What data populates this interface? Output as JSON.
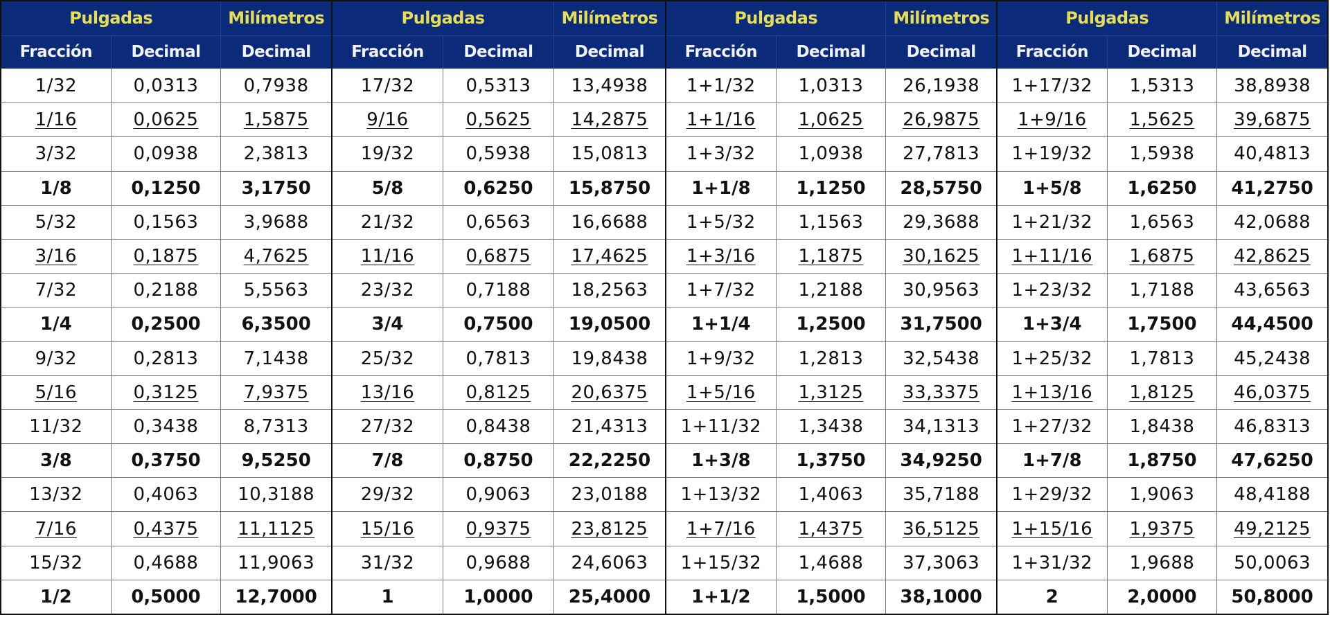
{
  "headers": {
    "group_title_inches": "Pulgadas",
    "group_title_mm": "Milímetros",
    "col_fraction": "Fracción",
    "col_decimal_in": "Decimal",
    "col_decimal_mm": "Decimal"
  },
  "colors": {
    "header_bg": "#0b2a7a",
    "group_title_text": "#e6df55",
    "column_header_text": "#f2f4fb",
    "cell_text": "#111111",
    "grid_line": "#7a7a7a",
    "group_separator": "#111111"
  },
  "row_styles": [
    "normal",
    "underline",
    "normal",
    "bold",
    "normal",
    "underline",
    "normal",
    "bold",
    "normal",
    "underline",
    "normal",
    "bold",
    "normal",
    "underline",
    "normal",
    "bold"
  ],
  "groups": [
    {
      "rows": [
        [
          "1/32",
          "0,0313",
          "0,7938"
        ],
        [
          "1/16",
          "0,0625",
          "1,5875"
        ],
        [
          "3/32",
          "0,0938",
          "2,3813"
        ],
        [
          "1/8",
          "0,1250",
          "3,1750"
        ],
        [
          "5/32",
          "0,1563",
          "3,9688"
        ],
        [
          "3/16",
          "0,1875",
          "4,7625"
        ],
        [
          "7/32",
          "0,2188",
          "5,5563"
        ],
        [
          "1/4",
          "0,2500",
          "6,3500"
        ],
        [
          "9/32",
          "0,2813",
          "7,1438"
        ],
        [
          "5/16",
          "0,3125",
          "7,9375"
        ],
        [
          "11/32",
          "0,3438",
          "8,7313"
        ],
        [
          "3/8",
          "0,3750",
          "9,5250"
        ],
        [
          "13/32",
          "0,4063",
          "10,3188"
        ],
        [
          "7/16",
          "0,4375",
          "11,1125"
        ],
        [
          "15/32",
          "0,4688",
          "11,9063"
        ],
        [
          "1/2",
          "0,5000",
          "12,7000"
        ]
      ]
    },
    {
      "rows": [
        [
          "17/32",
          "0,5313",
          "13,4938"
        ],
        [
          "9/16",
          "0,5625",
          "14,2875"
        ],
        [
          "19/32",
          "0,5938",
          "15,0813"
        ],
        [
          "5/8",
          "0,6250",
          "15,8750"
        ],
        [
          "21/32",
          "0,6563",
          "16,6688"
        ],
        [
          "11/16",
          "0,6875",
          "17,4625"
        ],
        [
          "23/32",
          "0,7188",
          "18,2563"
        ],
        [
          "3/4",
          "0,7500",
          "19,0500"
        ],
        [
          "25/32",
          "0,7813",
          "19,8438"
        ],
        [
          "13/16",
          "0,8125",
          "20,6375"
        ],
        [
          "27/32",
          "0,8438",
          "21,4313"
        ],
        [
          "7/8",
          "0,8750",
          "22,2250"
        ],
        [
          "29/32",
          "0,9063",
          "23,0188"
        ],
        [
          "15/16",
          "0,9375",
          "23,8125"
        ],
        [
          "31/32",
          "0,9688",
          "24,6063"
        ],
        [
          "1",
          "1,0000",
          "25,4000"
        ]
      ]
    },
    {
      "rows": [
        [
          "1+1/32",
          "1,0313",
          "26,1938"
        ],
        [
          "1+1/16",
          "1,0625",
          "26,9875"
        ],
        [
          "1+3/32",
          "1,0938",
          "27,7813"
        ],
        [
          "1+1/8",
          "1,1250",
          "28,5750"
        ],
        [
          "1+5/32",
          "1,1563",
          "29,3688"
        ],
        [
          "1+3/16",
          "1,1875",
          "30,1625"
        ],
        [
          "1+7/32",
          "1,2188",
          "30,9563"
        ],
        [
          "1+1/4",
          "1,2500",
          "31,7500"
        ],
        [
          "1+9/32",
          "1,2813",
          "32,5438"
        ],
        [
          "1+5/16",
          "1,3125",
          "33,3375"
        ],
        [
          "1+11/32",
          "1,3438",
          "34,1313"
        ],
        [
          "1+3/8",
          "1,3750",
          "34,9250"
        ],
        [
          "1+13/32",
          "1,4063",
          "35,7188"
        ],
        [
          "1+7/16",
          "1,4375",
          "36,5125"
        ],
        [
          "1+15/32",
          "1,4688",
          "37,3063"
        ],
        [
          "1+1/2",
          "1,5000",
          "38,1000"
        ]
      ]
    },
    {
      "rows": [
        [
          "1+17/32",
          "1,5313",
          "38,8938"
        ],
        [
          "1+9/16",
          "1,5625",
          "39,6875"
        ],
        [
          "1+19/32",
          "1,5938",
          "40,4813"
        ],
        [
          "1+5/8",
          "1,6250",
          "41,2750"
        ],
        [
          "1+21/32",
          "1,6563",
          "42,0688"
        ],
        [
          "1+11/16",
          "1,6875",
          "42,8625"
        ],
        [
          "1+23/32",
          "1,7188",
          "43,6563"
        ],
        [
          "1+3/4",
          "1,7500",
          "44,4500"
        ],
        [
          "1+25/32",
          "1,7813",
          "45,2438"
        ],
        [
          "1+13/16",
          "1,8125",
          "46,0375"
        ],
        [
          "1+27/32",
          "1,8438",
          "46,8313"
        ],
        [
          "1+7/8",
          "1,8750",
          "47,6250"
        ],
        [
          "1+29/32",
          "1,9063",
          "48,4188"
        ],
        [
          "1+15/16",
          "1,9375",
          "49,2125"
        ],
        [
          "1+31/32",
          "1,9688",
          "50,0063"
        ],
        [
          "2",
          "2,0000",
          "50,8000"
        ]
      ]
    }
  ]
}
